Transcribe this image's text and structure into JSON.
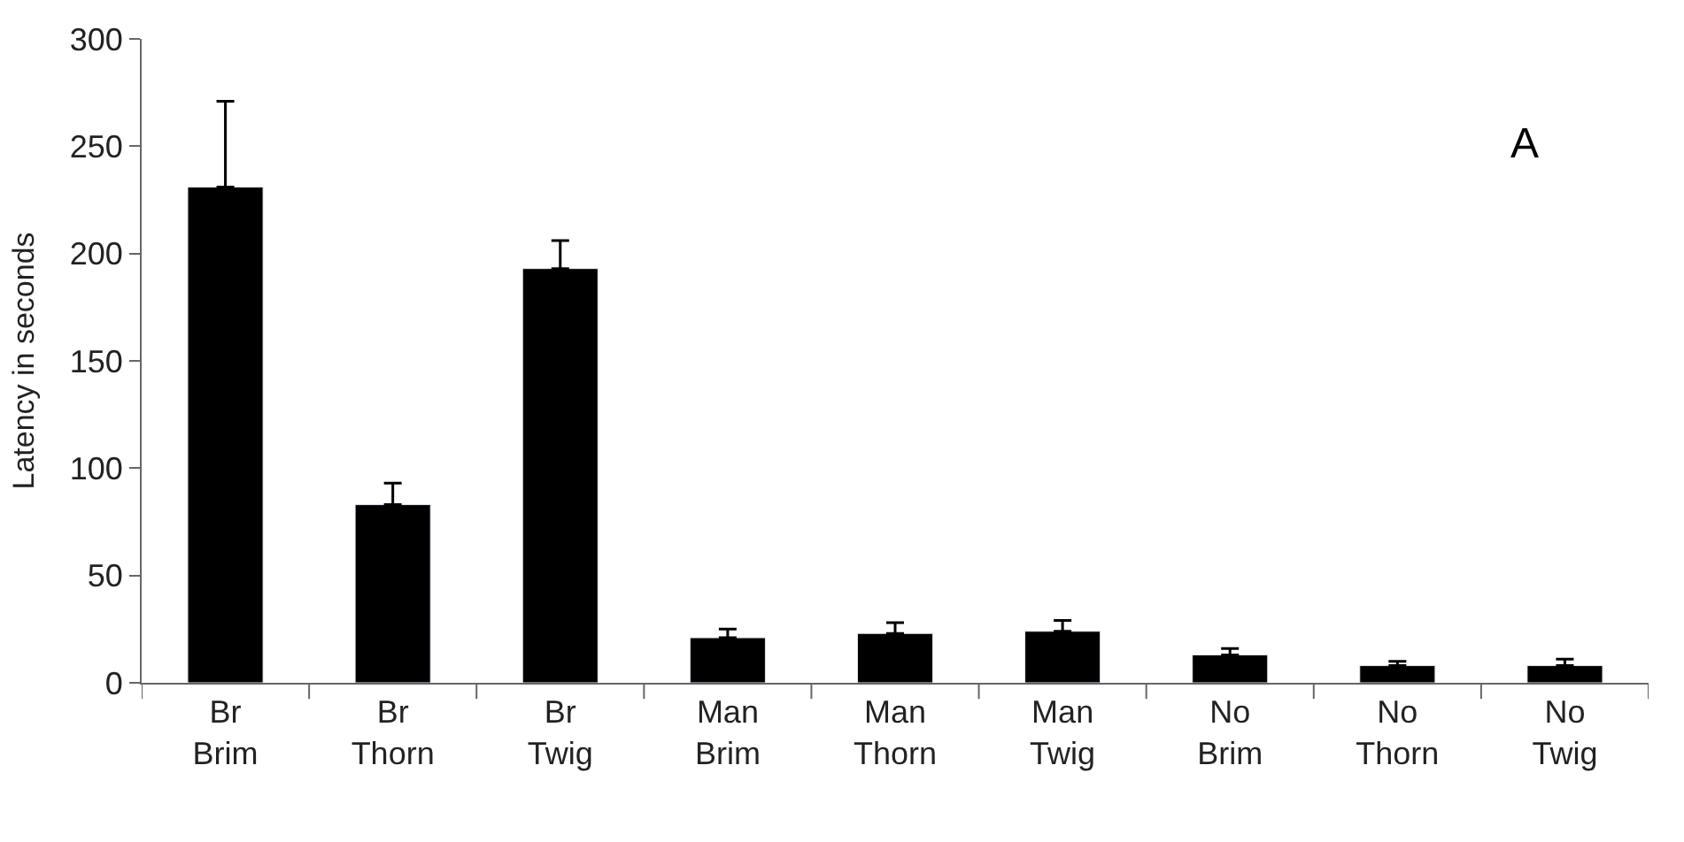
{
  "chart_data": {
    "type": "bar",
    "ylabel": "Latency in seconds",
    "categories": [
      "Br Brim",
      "Br Thorn",
      "Br Twig",
      "Man Brim",
      "Man Thorn",
      "Man Twig",
      "No Brim",
      "No Thorn",
      "No Twig"
    ],
    "values": [
      231,
      83,
      193,
      21,
      23,
      24,
      13,
      8,
      8
    ],
    "errors": [
      [
        231,
        271
      ],
      [
        83,
        93
      ],
      [
        193,
        206
      ],
      [
        21,
        25
      ],
      [
        23,
        28
      ],
      [
        24,
        29
      ],
      [
        13,
        16
      ],
      [
        8,
        10
      ],
      [
        8,
        11
      ]
    ],
    "color": "#000000",
    "ylim": [
      0,
      300
    ],
    "yticks": [
      0,
      50,
      100,
      150,
      200,
      250,
      300
    ],
    "annotations": [
      "A"
    ]
  }
}
